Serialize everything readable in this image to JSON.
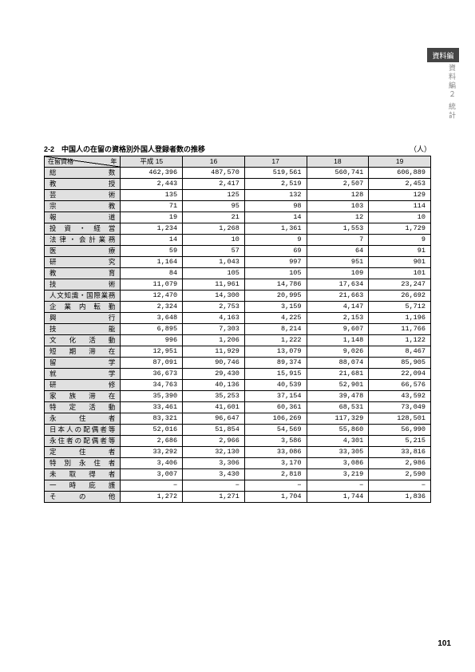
{
  "side_tab": "資料編",
  "side_text": "資料編２ 統計",
  "caption": "2-2　中国人の在留の資格別外国人登録者数の推移",
  "unit": "（人）",
  "corner_top": "年",
  "corner_bot": "在留資格",
  "year_headers": [
    "平成 15",
    "16",
    "17",
    "18",
    "19"
  ],
  "rows": [
    {
      "label": "総数",
      "v": [
        "462,396",
        "487,570",
        "519,561",
        "560,741",
        "606,889"
      ]
    },
    {
      "label": "教授",
      "v": [
        "2,443",
        "2,417",
        "2,519",
        "2,507",
        "2,453"
      ]
    },
    {
      "label": "芸術",
      "v": [
        "135",
        "125",
        "132",
        "128",
        "129"
      ]
    },
    {
      "label": "宗教",
      "v": [
        "71",
        "95",
        "98",
        "103",
        "114"
      ]
    },
    {
      "label": "報道",
      "v": [
        "19",
        "21",
        "14",
        "12",
        "10"
      ]
    },
    {
      "label": "投資・経営",
      "v": [
        "1,234",
        "1,268",
        "1,361",
        "1,553",
        "1,729"
      ]
    },
    {
      "label": "法律・会計業務",
      "v": [
        "14",
        "10",
        "9",
        "7",
        "9"
      ]
    },
    {
      "label": "医療",
      "v": [
        "59",
        "57",
        "69",
        "64",
        "91"
      ]
    },
    {
      "label": "研究",
      "v": [
        "1,164",
        "1,043",
        "997",
        "951",
        "901"
      ]
    },
    {
      "label": "教育",
      "v": [
        "84",
        "105",
        "105",
        "109",
        "101"
      ]
    },
    {
      "label": "技術",
      "v": [
        "11,079",
        "11,961",
        "14,786",
        "17,634",
        "23,247"
      ]
    },
    {
      "label": "人文知識・国際業務",
      "v": [
        "12,470",
        "14,300",
        "20,995",
        "21,663",
        "26,692"
      ]
    },
    {
      "label": "企業内転勤",
      "v": [
        "2,324",
        "2,753",
        "3,159",
        "4,147",
        "5,712"
      ]
    },
    {
      "label": "興行",
      "v": [
        "3,648",
        "4,163",
        "4,225",
        "2,153",
        "1,196"
      ]
    },
    {
      "label": "技能",
      "v": [
        "6,895",
        "7,303",
        "8,214",
        "9,607",
        "11,766"
      ]
    },
    {
      "label": "文化活動",
      "v": [
        "996",
        "1,206",
        "1,222",
        "1,148",
        "1,122"
      ]
    },
    {
      "label": "短期滞在",
      "v": [
        "12,951",
        "11,929",
        "13,079",
        "9,026",
        "8,467"
      ]
    },
    {
      "label": "留学",
      "v": [
        "87,091",
        "90,746",
        "89,374",
        "88,074",
        "85,905"
      ]
    },
    {
      "label": "就学",
      "v": [
        "36,673",
        "29,430",
        "15,915",
        "21,681",
        "22,094"
      ]
    },
    {
      "label": "研修",
      "v": [
        "34,763",
        "40,136",
        "40,539",
        "52,901",
        "66,576"
      ]
    },
    {
      "label": "家族滞在",
      "v": [
        "35,390",
        "35,253",
        "37,154",
        "39,478",
        "43,592"
      ]
    },
    {
      "label": "特定活動",
      "v": [
        "33,461",
        "41,601",
        "60,361",
        "68,531",
        "73,049"
      ]
    },
    {
      "label": "永住者",
      "v": [
        "83,321",
        "96,647",
        "106,269",
        "117,329",
        "128,501"
      ]
    },
    {
      "label": "日本人の配偶者等",
      "v": [
        "52,016",
        "51,854",
        "54,569",
        "55,860",
        "56,990"
      ]
    },
    {
      "label": "永住者の配偶者等",
      "v": [
        "2,686",
        "2,966",
        "3,586",
        "4,301",
        "5,215"
      ]
    },
    {
      "label": "定住者",
      "v": [
        "33,292",
        "32,130",
        "33,086",
        "33,305",
        "33,816"
      ]
    },
    {
      "label": "特別永住者",
      "v": [
        "3,406",
        "3,306",
        "3,170",
        "3,086",
        "2,986"
      ]
    },
    {
      "label": "未取得者",
      "v": [
        "3,007",
        "3,430",
        "2,818",
        "3,219",
        "2,590"
      ]
    },
    {
      "label": "一時庇護",
      "v": [
        "−",
        "−",
        "−",
        "−",
        "−"
      ]
    },
    {
      "label": "その他",
      "v": [
        "1,272",
        "1,271",
        "1,704",
        "1,744",
        "1,836"
      ]
    }
  ],
  "page_num": "101"
}
